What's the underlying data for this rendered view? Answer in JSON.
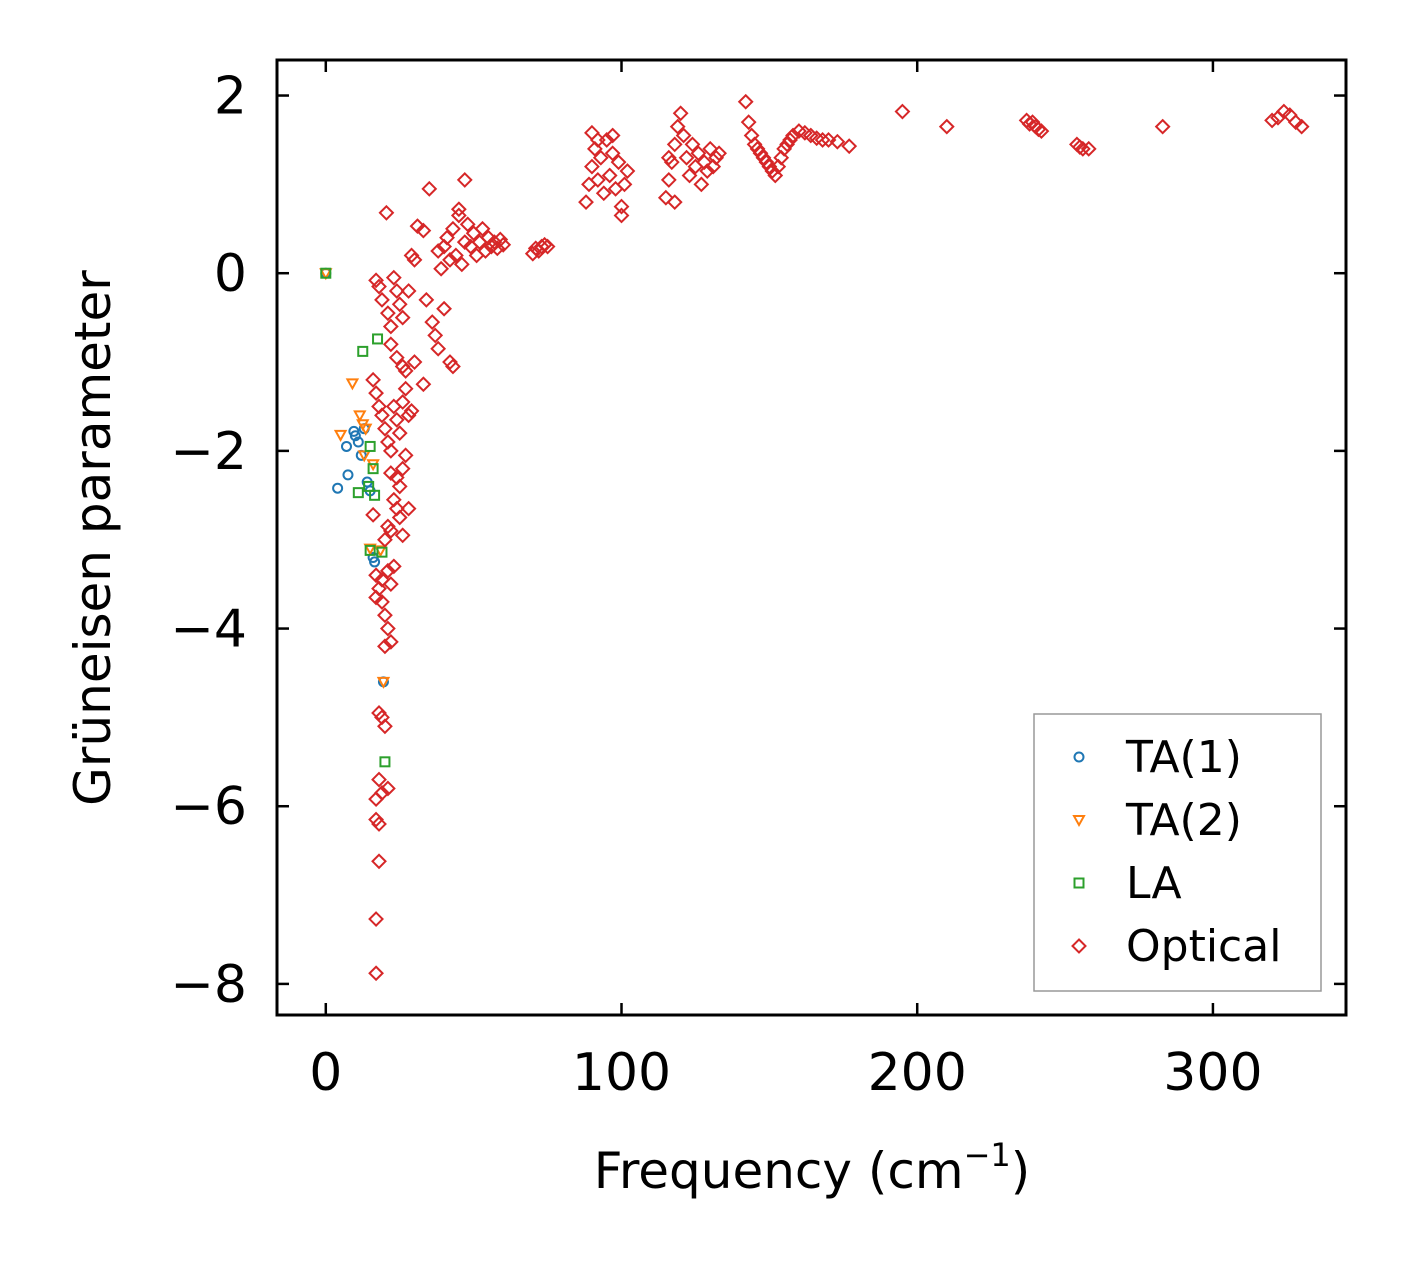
{
  "chart_data": {
    "type": "scatter",
    "title": "",
    "xlabel": "Frequency (cm",
    "xlabel_sup": "−1",
    "xlabel_close": ")",
    "ylabel": "Grüneisen parameter",
    "xlim": [
      -16.5,
      345
    ],
    "ylim": [
      -8.35,
      2.4
    ],
    "xticks": [
      0,
      100,
      200,
      300
    ],
    "xtick_labels": [
      "0",
      "100",
      "200",
      "300"
    ],
    "yticks": [
      2,
      0,
      -2,
      -4,
      -6,
      -8
    ],
    "ytick_labels": [
      "2",
      "0",
      "−2",
      "−4",
      "−6",
      "−8"
    ],
    "legend_position": "lower-right",
    "series": [
      {
        "name": "TA(1)",
        "marker": "circle",
        "color": "#1f77b4",
        "points": [
          [
            0,
            0
          ],
          [
            4,
            -2.42
          ],
          [
            7,
            -1.95
          ],
          [
            7.5,
            -2.27
          ],
          [
            9.5,
            -1.78
          ],
          [
            10,
            -1.83
          ],
          [
            11,
            -1.9
          ],
          [
            12,
            -2.05
          ],
          [
            13,
            -1.75
          ],
          [
            14,
            -2.35
          ],
          [
            15,
            -2.45
          ],
          [
            16,
            -3.2
          ],
          [
            16.5,
            -3.25
          ],
          [
            19.5,
            -4.6
          ]
        ]
      },
      {
        "name": "TA(2)",
        "marker": "triangle-down",
        "color": "#ff7f0e",
        "points": [
          [
            0,
            0
          ],
          [
            5,
            -1.82
          ],
          [
            9,
            -1.24
          ],
          [
            11.5,
            -1.6
          ],
          [
            12.5,
            -1.7
          ],
          [
            13,
            -2.05
          ],
          [
            13.5,
            -1.75
          ],
          [
            15,
            -3.1
          ],
          [
            16,
            -2.15
          ],
          [
            18.5,
            -3.12
          ],
          [
            19.5,
            -4.6
          ]
        ]
      },
      {
        "name": "LA",
        "marker": "square",
        "color": "#2ca02c",
        "points": [
          [
            0,
            0
          ],
          [
            11,
            -2.47
          ],
          [
            12.5,
            -0.88
          ],
          [
            14.5,
            -2.4
          ],
          [
            15,
            -3.12
          ],
          [
            15,
            -1.95
          ],
          [
            16,
            -2.2
          ],
          [
            16.5,
            -2.5
          ],
          [
            17.5,
            -0.74
          ],
          [
            19,
            -3.14
          ],
          [
            20,
            -5.5
          ]
        ]
      },
      {
        "name": "Optical",
        "marker": "diamond",
        "color": "#d62728",
        "points": [
          [
            17,
            -0.08
          ],
          [
            18,
            -0.15
          ],
          [
            20.5,
            0.68
          ],
          [
            19,
            -0.3
          ],
          [
            21,
            -0.45
          ],
          [
            22,
            -0.6
          ],
          [
            23,
            -0.05
          ],
          [
            24,
            -0.2
          ],
          [
            25,
            -0.35
          ],
          [
            26,
            -0.5
          ],
          [
            22,
            -0.8
          ],
          [
            24,
            -0.95
          ],
          [
            26,
            -1.05
          ],
          [
            28,
            -0.2
          ],
          [
            29,
            0.2
          ],
          [
            30,
            0.15
          ],
          [
            31,
            0.53
          ],
          [
            33,
            0.48
          ],
          [
            34,
            -0.3
          ],
          [
            35,
            0.95
          ],
          [
            36,
            -0.55
          ],
          [
            37,
            -0.7
          ],
          [
            38,
            -0.85
          ],
          [
            40,
            -0.4
          ],
          [
            42,
            -1.0
          ],
          [
            43,
            -1.05
          ],
          [
            33,
            -1.25
          ],
          [
            30,
            -1.0
          ],
          [
            27,
            -1.1
          ],
          [
            16,
            -1.2
          ],
          [
            17,
            -1.35
          ],
          [
            18,
            -1.5
          ],
          [
            19,
            -1.6
          ],
          [
            20,
            -1.75
          ],
          [
            21,
            -1.9
          ],
          [
            22,
            -2.0
          ],
          [
            23,
            -1.5
          ],
          [
            24,
            -1.65
          ],
          [
            25,
            -1.8
          ],
          [
            26,
            -1.45
          ],
          [
            27,
            -1.3
          ],
          [
            28,
            -1.6
          ],
          [
            29,
            -1.55
          ],
          [
            26,
            -2.2
          ],
          [
            27,
            -2.05
          ],
          [
            24,
            -2.3
          ],
          [
            22,
            -2.25
          ],
          [
            25,
            -2.4
          ],
          [
            23,
            -2.55
          ],
          [
            24,
            -2.65
          ],
          [
            25,
            -2.75
          ],
          [
            22,
            -2.9
          ],
          [
            20,
            -3.0
          ],
          [
            21,
            -2.85
          ],
          [
            26,
            -2.95
          ],
          [
            28,
            -2.65
          ],
          [
            16,
            -2.72
          ],
          [
            17,
            -3.4
          ],
          [
            18,
            -3.55
          ],
          [
            19,
            -3.7
          ],
          [
            20,
            -3.85
          ],
          [
            21,
            -4.0
          ],
          [
            22,
            -4.15
          ],
          [
            20,
            -4.2
          ],
          [
            17,
            -3.65
          ],
          [
            23,
            -3.3
          ],
          [
            22,
            -3.5
          ],
          [
            21,
            -3.35
          ],
          [
            19,
            -3.45
          ],
          [
            18,
            -4.95
          ],
          [
            19,
            -5.0
          ],
          [
            20,
            -5.1
          ],
          [
            18,
            -5.7
          ],
          [
            19,
            -5.85
          ],
          [
            21,
            -5.8
          ],
          [
            17,
            -5.92
          ],
          [
            17,
            -6.15
          ],
          [
            18,
            -6.2
          ],
          [
            18,
            -6.62
          ],
          [
            17,
            -7.27
          ],
          [
            17,
            -7.88
          ],
          [
            38,
            0.25
          ],
          [
            39,
            0.05
          ],
          [
            40,
            0.3
          ],
          [
            41,
            0.4
          ],
          [
            42,
            0.15
          ],
          [
            43,
            0.5
          ],
          [
            44,
            0.2
          ],
          [
            45,
            0.65
          ],
          [
            46,
            0.1
          ],
          [
            47,
            1.05
          ],
          [
            45,
            0.72
          ],
          [
            47,
            0.35
          ],
          [
            48,
            0.55
          ],
          [
            49,
            0.3
          ],
          [
            50,
            0.45
          ],
          [
            51,
            0.2
          ],
          [
            52,
            0.35
          ],
          [
            53,
            0.5
          ],
          [
            54,
            0.25
          ],
          [
            55,
            0.4
          ],
          [
            56,
            0.3
          ],
          [
            57,
            0.35
          ],
          [
            58,
            0.28
          ],
          [
            59,
            0.38
          ],
          [
            60,
            0.32
          ],
          [
            70,
            0.22
          ],
          [
            71,
            0.28
          ],
          [
            72,
            0.25
          ],
          [
            73,
            0.3
          ],
          [
            74,
            0.32
          ],
          [
            75,
            0.3
          ],
          [
            88,
            0.8
          ],
          [
            89,
            1.0
          ],
          [
            90,
            1.2
          ],
          [
            91,
            1.4
          ],
          [
            92,
            1.05
          ],
          [
            93,
            1.3
          ],
          [
            94,
            0.9
          ],
          [
            95,
            1.5
          ],
          [
            96,
            1.1
          ],
          [
            97,
            1.35
          ],
          [
            98,
            0.95
          ],
          [
            99,
            1.25
          ],
          [
            100,
            0.75
          ],
          [
            101,
            1.0
          ],
          [
            102,
            1.15
          ],
          [
            90,
            1.58
          ],
          [
            92,
            1.5
          ],
          [
            97,
            1.55
          ],
          [
            100,
            0.65
          ],
          [
            115,
            0.85
          ],
          [
            116,
            1.05
          ],
          [
            117,
            1.25
          ],
          [
            118,
            1.45
          ],
          [
            119,
            1.65
          ],
          [
            120,
            1.8
          ],
          [
            121,
            1.55
          ],
          [
            122,
            1.3
          ],
          [
            123,
            1.1
          ],
          [
            124,
            1.45
          ],
          [
            125,
            1.2
          ],
          [
            126,
            1.35
          ],
          [
            127,
            1.0
          ],
          [
            128,
            1.25
          ],
          [
            129,
            1.15
          ],
          [
            130,
            1.4
          ],
          [
            131,
            1.2
          ],
          [
            132,
            1.3
          ],
          [
            133,
            1.35
          ],
          [
            116,
            1.3
          ],
          [
            118,
            0.8
          ],
          [
            142,
            1.93
          ],
          [
            143,
            1.7
          ],
          [
            144,
            1.55
          ],
          [
            145,
            1.45
          ],
          [
            146,
            1.4
          ],
          [
            147,
            1.35
          ],
          [
            148,
            1.3
          ],
          [
            149,
            1.25
          ],
          [
            150,
            1.2
          ],
          [
            151,
            1.15
          ],
          [
            152,
            1.1
          ],
          [
            153,
            1.2
          ],
          [
            154,
            1.3
          ],
          [
            155,
            1.4
          ],
          [
            156,
            1.45
          ],
          [
            157,
            1.5
          ],
          [
            158,
            1.55
          ],
          [
            160,
            1.6
          ],
          [
            162,
            1.58
          ],
          [
            164,
            1.55
          ],
          [
            166,
            1.52
          ],
          [
            168,
            1.5
          ],
          [
            170,
            1.5
          ],
          [
            173,
            1.48
          ],
          [
            177,
            1.43
          ],
          [
            195,
            1.82
          ],
          [
            210,
            1.65
          ],
          [
            237,
            1.72
          ],
          [
            238,
            1.68
          ],
          [
            239,
            1.7
          ],
          [
            240,
            1.65
          ],
          [
            241,
            1.62
          ],
          [
            242,
            1.6
          ],
          [
            254,
            1.45
          ],
          [
            255,
            1.42
          ],
          [
            256,
            1.4
          ],
          [
            258,
            1.4
          ],
          [
            283,
            1.65
          ],
          [
            320,
            1.72
          ],
          [
            322,
            1.75
          ],
          [
            324,
            1.82
          ],
          [
            326,
            1.78
          ],
          [
            328,
            1.7
          ],
          [
            330,
            1.65
          ]
        ]
      }
    ]
  }
}
